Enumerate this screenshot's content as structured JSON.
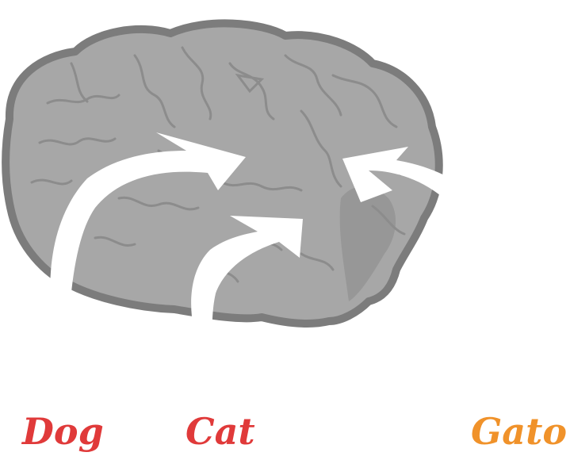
{
  "labels": [
    {
      "id": "dog",
      "text": "Dog"
    },
    {
      "id": "cat",
      "text": "Cat"
    },
    {
      "id": "gato",
      "text": "Gato"
    }
  ],
  "colors": {
    "dog": "#e03a3a",
    "cat": "#e03a3a",
    "gato": "#f0922a",
    "brain_fill": "#a7a7a7",
    "brain_outline": "#7c7c7c",
    "brain_sulci": "#8c8c8c",
    "arrow_fill": "#ffffff"
  },
  "icons": {
    "brain": "brain-icon",
    "arrow": "curved-arrow-icon"
  }
}
